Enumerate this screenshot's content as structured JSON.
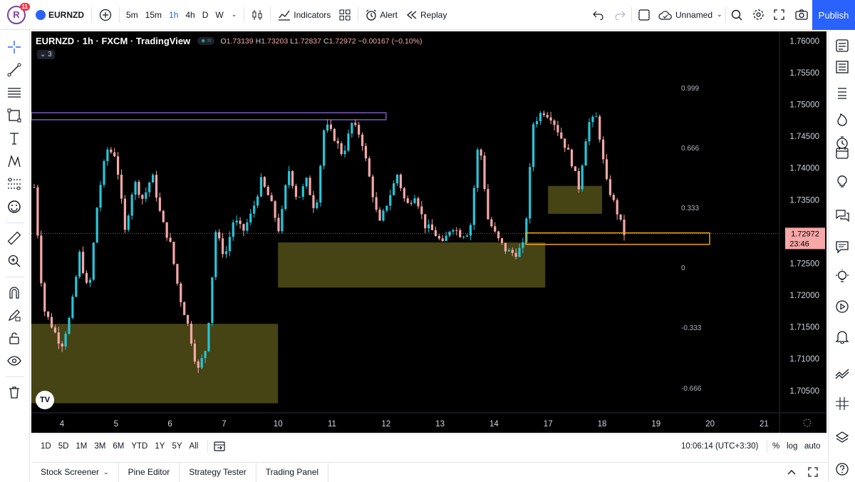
{
  "topbar": {
    "avatar_letter": "R",
    "notifications": "11",
    "symbol": "EURNZD",
    "timeframes": [
      "5m",
      "15m",
      "1h",
      "4h",
      "D",
      "W"
    ],
    "active_timeframe": "1h",
    "indicators_label": "Indicators",
    "alert_label": "Alert",
    "replay_label": "Replay",
    "layout_name": "Unnamed",
    "publish_label": "Publish"
  },
  "legend": {
    "title": "EURNZD · 1h · FXCM · TradingView",
    "ohlc": [
      {
        "k": "O",
        "v": "1.73139"
      },
      {
        "k": "H",
        "v": "1.73203"
      },
      {
        "k": "L",
        "v": "1.72837"
      },
      {
        "k": "C",
        "v": "1.72972"
      }
    ],
    "change": "−0.00167 (−0.10%)",
    "collapse_count": "3"
  },
  "price_axis": {
    "labels": [
      "1.76000",
      "1.75500",
      "1.75000",
      "1.74500",
      "1.74000",
      "1.73500",
      "1.73000",
      "1.72500",
      "1.72000",
      "1.71500",
      "1.71000",
      "1.70500"
    ],
    "current_price": "1.72972",
    "countdown": "23:46"
  },
  "time_axis": {
    "labels": [
      "4",
      "5",
      "6",
      "7",
      "10",
      "11",
      "12",
      "13",
      "14",
      "17",
      "18",
      "19",
      "20",
      "21"
    ]
  },
  "fib_labels": [
    "0.999",
    "0.666",
    "0.333",
    "0",
    "-0.333",
    "-0.666"
  ],
  "chart_data": {
    "type": "candlestick",
    "ylim": [
      1.7015,
      1.7615
    ],
    "colors": {
      "up": "#26c6da",
      "down": "#f6a7a7",
      "zone": "#4e4a17",
      "box_purple": "#7e57c2",
      "box_orange": "#f0a30a"
    },
    "zones": [
      {
        "from_day": "4",
        "to_day": "10",
        "low": 1.703,
        "high": 1.7155
      },
      {
        "from_day": "10",
        "to_day": "17",
        "low": 1.7212,
        "high": 1.7283
      },
      {
        "from_day": "17",
        "to_day": "18",
        "low": 1.7328,
        "high": 1.7372
      }
    ],
    "boxes": [
      {
        "color": "purple",
        "low": 1.7476,
        "high": 1.7487
      },
      {
        "color": "orange",
        "low": 1.728,
        "high": 1.7298
      }
    ],
    "path": [
      1.737,
      1.718,
      1.715,
      1.712,
      1.717,
      1.7265,
      1.72,
      1.735,
      1.743,
      1.742,
      1.73,
      1.738,
      1.735,
      1.739,
      1.732,
      1.728,
      1.72,
      1.715,
      1.708,
      1.712,
      1.73,
      1.726,
      1.732,
      1.73,
      1.733,
      1.738,
      1.735,
      1.73,
      1.74,
      1.735,
      1.738,
      1.733,
      1.747,
      1.745,
      1.742,
      1.747,
      1.745,
      1.738,
      1.731,
      1.735,
      1.739,
      1.734,
      1.736,
      1.731,
      1.73,
      1.728,
      1.731,
      1.7295,
      1.73,
      1.745,
      1.732,
      1.729,
      1.727,
      1.7265,
      1.728,
      1.747,
      1.749,
      1.748,
      1.745,
      1.742,
      1.737,
      1.747,
      1.748,
      1.738,
      1.734,
      1.7297
    ]
  },
  "bottombar": {
    "ranges": [
      "1D",
      "5D",
      "1M",
      "3M",
      "6M",
      "YTD",
      "1Y",
      "5Y",
      "All"
    ],
    "clock": "10:06:14 (UTC+3:30)",
    "percent": "%",
    "log": "log",
    "auto": "auto"
  },
  "panels": [
    "Stock Screener",
    "Pine Editor",
    "Strategy Tester",
    "Trading Panel"
  ]
}
